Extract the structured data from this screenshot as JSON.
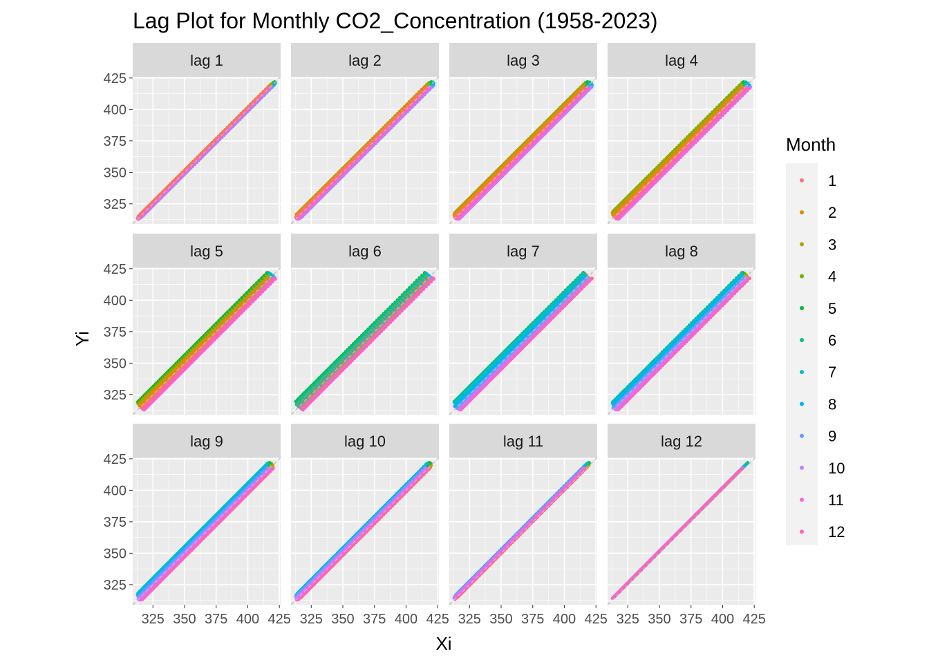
{
  "chart_data": {
    "type": "scatter",
    "title": "Lag Plot for Monthly CO2_Concentration (1958-2023)",
    "xlabel": "Xi",
    "ylabel": "Yi",
    "facets": [
      "lag 1",
      "lag 2",
      "lag 3",
      "lag 4",
      "lag 5",
      "lag 6",
      "lag 7",
      "lag 8",
      "lag 9",
      "lag 10",
      "lag 11",
      "lag 12"
    ],
    "lags": [
      1,
      2,
      3,
      4,
      5,
      6,
      7,
      8,
      9,
      10,
      11,
      12
    ],
    "facet_layout": {
      "rows": 3,
      "cols": 4
    },
    "xlim": [
      309,
      426
    ],
    "ylim": [
      309,
      426
    ],
    "x_ticks": [
      325,
      350,
      375,
      400,
      425
    ],
    "y_ticks": [
      325,
      350,
      375,
      400,
      425
    ],
    "reference_line": "y = x (dashed grey)",
    "grid": true,
    "legend": {
      "title": "Month",
      "position": "right",
      "entries": [
        "1",
        "2",
        "3",
        "4",
        "5",
        "6",
        "7",
        "8",
        "9",
        "10",
        "11",
        "12"
      ],
      "colors": [
        "#F8766D",
        "#DE8C00",
        "#B79F00",
        "#7CAE00",
        "#00BA38",
        "#00C08B",
        "#00BFC4",
        "#00B4F0",
        "#619CFF",
        "#C77CFF",
        "#F564E3",
        "#FF64B0"
      ]
    },
    "series_model": {
      "start_year": 1958,
      "end_year": 2023,
      "approx_start_value": 315,
      "approx_end_value": 420,
      "seasonal_amplitude": 3,
      "note_values_estimated": true
    }
  },
  "colors": {
    "panel_background": "#EBEBEB",
    "strip_background": "#D9D9D9",
    "grid_major": "#FFFFFF",
    "axis_text": "#4D4D4D",
    "reference_line": "#BDBDBD"
  }
}
